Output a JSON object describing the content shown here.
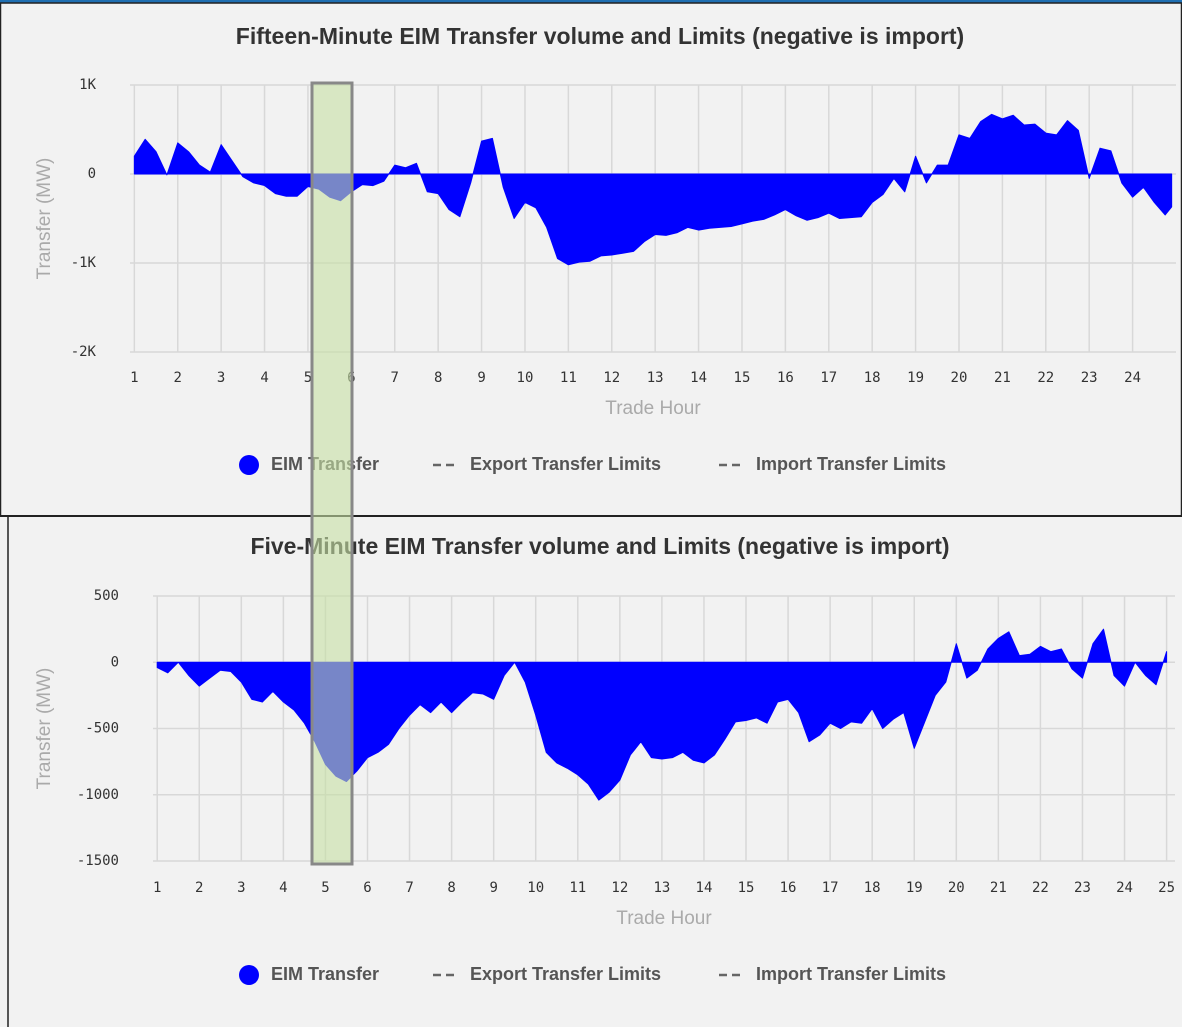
{
  "chart_data": [
    {
      "type": "area",
      "title": "Fifteen-Minute EIM Transfer volume and Limits (negative is import)",
      "x_label": "Trade Hour",
      "y_label": "Transfer (MW)",
      "xlim": [
        0.9,
        25
      ],
      "xticks": [
        1,
        2,
        3,
        4,
        5,
        6,
        7,
        8,
        9,
        10,
        11,
        12,
        13,
        14,
        15,
        16,
        17,
        18,
        19,
        20,
        21,
        22,
        23,
        24
      ],
      "ylim": [
        -2000,
        1000
      ],
      "yticks": [
        {
          "value": 1000,
          "label": "1K"
        },
        0,
        {
          "value": -1000,
          "label": "-1K"
        },
        {
          "value": -2000,
          "label": "-2K"
        }
      ],
      "grid": true,
      "x": [
        1,
        1.25,
        1.5,
        1.75,
        2,
        2.25,
        2.5,
        2.75,
        3,
        3.25,
        3.5,
        3.75,
        4,
        4.25,
        4.5,
        4.75,
        5,
        5.25,
        5.5,
        5.75,
        6,
        6.25,
        6.5,
        6.75,
        7,
        7.25,
        7.5,
        7.75,
        8,
        8.25,
        8.5,
        8.75,
        9,
        9.25,
        9.5,
        9.75,
        10,
        10.25,
        10.5,
        10.75,
        11,
        11.25,
        11.5,
        11.75,
        12,
        12.25,
        12.5,
        12.75,
        13,
        13.25,
        13.5,
        13.75,
        14,
        14.25,
        14.5,
        14.75,
        15,
        15.25,
        15.5,
        15.75,
        16,
        16.25,
        16.5,
        16.75,
        17,
        17.25,
        17.5,
        17.75,
        18,
        18.25,
        18.5,
        18.75,
        19,
        19.25,
        19.5,
        19.75,
        20,
        20.25,
        20.5,
        20.75,
        21,
        21.25,
        21.5,
        21.75,
        22,
        22.25,
        22.5,
        22.75,
        23,
        23.25,
        23.5,
        23.75,
        24,
        24.25,
        24.5,
        24.75,
        24.9
      ],
      "series": [
        {
          "name": "EIM Transfer",
          "color": "#0000ff",
          "values": [
            200,
            390,
            250,
            -10,
            350,
            250,
            100,
            20,
            330,
            150,
            -30,
            -100,
            -130,
            -220,
            -250,
            -250,
            -140,
            -170,
            -260,
            -300,
            -200,
            -120,
            -130,
            -80,
            100,
            70,
            120,
            -200,
            -220,
            -400,
            -480,
            -100,
            370,
            400,
            -150,
            -500,
            -320,
            -380,
            -600,
            -950,
            -1020,
            -990,
            -980,
            -920,
            -910,
            -890,
            -870,
            -760,
            -680,
            -690,
            -660,
            -600,
            -630,
            -610,
            -600,
            -590,
            -560,
            -530,
            -510,
            -460,
            -400,
            -470,
            -520,
            -490,
            -440,
            -500,
            -490,
            -480,
            -320,
            -230,
            -50,
            -200,
            200,
            -100,
            100,
            100,
            440,
            400,
            590,
            670,
            620,
            660,
            550,
            560,
            460,
            440,
            600,
            490,
            -50,
            290,
            260,
            -100,
            -260,
            -150,
            -320,
            -460,
            -370
          ]
        }
      ],
      "legend": [
        {
          "name": "Export Transfer Limits",
          "style": "dashed",
          "color": "#666666"
        },
        {
          "name": "Import Transfer Limits",
          "style": "dashed",
          "color": "#666666"
        }
      ]
    },
    {
      "type": "area",
      "title": "Five-Minute EIM Transfer volume and Limits (negative is import)",
      "x_label": "Trade Hour",
      "y_label": "Transfer (MW)",
      "xlim": [
        0.9,
        25.2
      ],
      "xticks": [
        1,
        2,
        3,
        4,
        5,
        6,
        7,
        8,
        9,
        10,
        11,
        12,
        13,
        14,
        15,
        16,
        17,
        18,
        19,
        20,
        21,
        22,
        23,
        24,
        25
      ],
      "ylim": [
        -1500,
        500
      ],
      "yticks": [
        500,
        0,
        -500,
        -1000,
        -1500
      ],
      "grid": true,
      "x": [
        1,
        1.25,
        1.5,
        1.75,
        2,
        2.25,
        2.5,
        2.75,
        3,
        3.25,
        3.5,
        3.75,
        4,
        4.25,
        4.5,
        4.75,
        5,
        5.25,
        5.5,
        5.75,
        6,
        6.25,
        6.5,
        6.75,
        7,
        7.25,
        7.5,
        7.75,
        8,
        8.25,
        8.5,
        8.75,
        9,
        9.25,
        9.5,
        9.75,
        10,
        10.25,
        10.5,
        10.75,
        11,
        11.25,
        11.5,
        11.75,
        12,
        12.25,
        12.5,
        12.75,
        13,
        13.25,
        13.5,
        13.75,
        14,
        14.25,
        14.5,
        14.75,
        15,
        15.25,
        15.5,
        15.75,
        16,
        16.25,
        16.5,
        16.75,
        17,
        17.25,
        17.5,
        17.75,
        18,
        18.25,
        18.5,
        18.75,
        19,
        19.25,
        19.5,
        19.75,
        20,
        20.25,
        20.5,
        20.75,
        21,
        21.25,
        21.5,
        21.75,
        22,
        22.25,
        22.5,
        22.75,
        23,
        23.25,
        23.5,
        23.75,
        24,
        24.25,
        24.5,
        24.75,
        25
      ],
      "series": [
        {
          "name": "EIM Transfer",
          "color": "#0000ff",
          "values": [
            -40,
            -80,
            0,
            -100,
            -180,
            -120,
            -60,
            -70,
            -150,
            -280,
            -300,
            -220,
            -300,
            -360,
            -460,
            -600,
            -770,
            -860,
            -900,
            -820,
            -720,
            -680,
            -620,
            -500,
            -400,
            -320,
            -380,
            -300,
            -380,
            -300,
            -230,
            -240,
            -280,
            -100,
            0,
            -150,
            -400,
            -680,
            -760,
            -800,
            -850,
            -920,
            -1040,
            -980,
            -890,
            -700,
            -600,
            -720,
            -730,
            -720,
            -680,
            -740,
            -760,
            -700,
            -580,
            -450,
            -440,
            -420,
            -460,
            -300,
            -280,
            -380,
            -600,
            -550,
            -460,
            -500,
            -450,
            -460,
            -350,
            -500,
            -430,
            -380,
            -650,
            -450,
            -250,
            -150,
            140,
            -120,
            -60,
            100,
            180,
            230,
            50,
            60,
            120,
            80,
            100,
            -50,
            -120,
            140,
            250,
            -100,
            -180,
            0,
            -100,
            -170,
            80
          ]
        }
      ],
      "legend": [
        {
          "name": "Export Transfer Limits",
          "style": "dashed",
          "color": "#666666"
        },
        {
          "name": "Import Transfer Limits",
          "style": "dashed",
          "color": "#666666"
        }
      ]
    }
  ]
}
